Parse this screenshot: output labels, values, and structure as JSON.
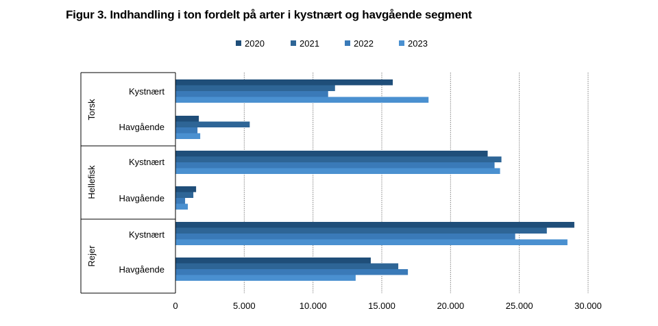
{
  "chart_data": {
    "type": "bar",
    "orientation": "horizontal",
    "title": "Figur 3. Indhandling i ton fordelt på arter i kystnært og havgående segment",
    "legend_position": "top",
    "groups": [
      {
        "name": "Torsk",
        "subcategories": [
          "Kystnært",
          "Havgående"
        ]
      },
      {
        "name": "Hellefisk",
        "subcategories": [
          "Kystnært",
          "Havgående"
        ]
      },
      {
        "name": "Rejer",
        "subcategories": [
          "Kystnært",
          "Havgående"
        ]
      }
    ],
    "categories": [
      "Torsk - Kystnært",
      "Torsk - Havgående",
      "Hellefisk - Kystnært",
      "Hellefisk - Havgående",
      "Rejer - Kystnært",
      "Rejer - Havgående"
    ],
    "series": [
      {
        "name": "2020",
        "color": "#1f4e79",
        "values": [
          15800,
          1700,
          22700,
          1500,
          29000,
          14200
        ]
      },
      {
        "name": "2021",
        "color": "#2e6596",
        "values": [
          11600,
          5400,
          23700,
          1300,
          27000,
          16200
        ]
      },
      {
        "name": "2022",
        "color": "#3a7ab8",
        "values": [
          11100,
          1600,
          23200,
          700,
          24700,
          16900
        ]
      },
      {
        "name": "2023",
        "color": "#4a90d0",
        "values": [
          18400,
          1800,
          23600,
          900,
          28500,
          13100
        ]
      }
    ],
    "xlim": [
      0,
      30000
    ],
    "xticks": [
      0,
      5000,
      10000,
      15000,
      20000,
      25000,
      30000
    ],
    "xtick_labels": [
      "0",
      "5.000",
      "10.000",
      "15.000",
      "20.000",
      "25.000",
      "30.000"
    ],
    "grid": true
  }
}
